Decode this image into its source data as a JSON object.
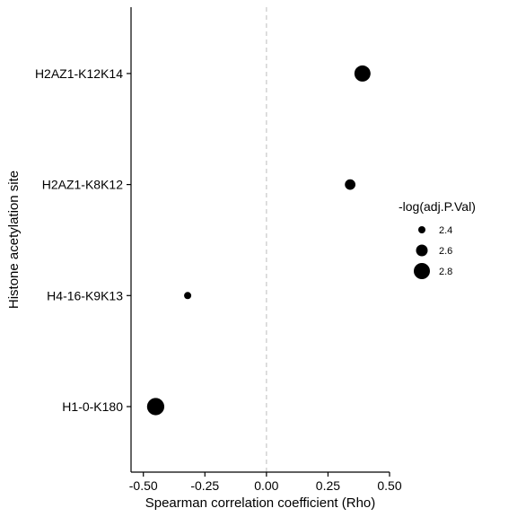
{
  "chart_data": {
    "type": "scatter",
    "title": "",
    "xlabel": "Spearman correlation coefficient (Rho)",
    "ylabel": "Histone acetylation site",
    "xlim": [
      -0.55,
      0.5
    ],
    "xticks": [
      -0.5,
      -0.25,
      0.0,
      0.25,
      0.5
    ],
    "xtick_labels": [
      "-0.50",
      "-0.25",
      "0.00",
      "0.25",
      "0.50"
    ],
    "categories": [
      "H1-0-K180",
      "H4-16-K9K13",
      "H2AZ1-K8K12",
      "H2AZ1-K12K14"
    ],
    "points": [
      {
        "site": "H2AZ1-K12K14",
        "rho": 0.39,
        "neg_log_p": 2.8
      },
      {
        "site": "H2AZ1-K8K12",
        "rho": 0.34,
        "neg_log_p": 2.55
      },
      {
        "site": "H4-16-K9K13",
        "rho": -0.32,
        "neg_log_p": 2.4
      },
      {
        "site": "H1-0-K180",
        "rho": -0.45,
        "neg_log_p": 2.85
      }
    ],
    "reference_line": {
      "x": 0,
      "style": "dashed",
      "color": "#c8c8c8"
    },
    "legend": {
      "title": "-log(adj.P.Val)",
      "position": "right",
      "entries": [
        {
          "label": "2.4",
          "value": 2.4
        },
        {
          "label": "2.6",
          "value": 2.6
        },
        {
          "label": "2.8",
          "value": 2.8
        }
      ]
    },
    "point_color": "#000000",
    "grid": false
  }
}
